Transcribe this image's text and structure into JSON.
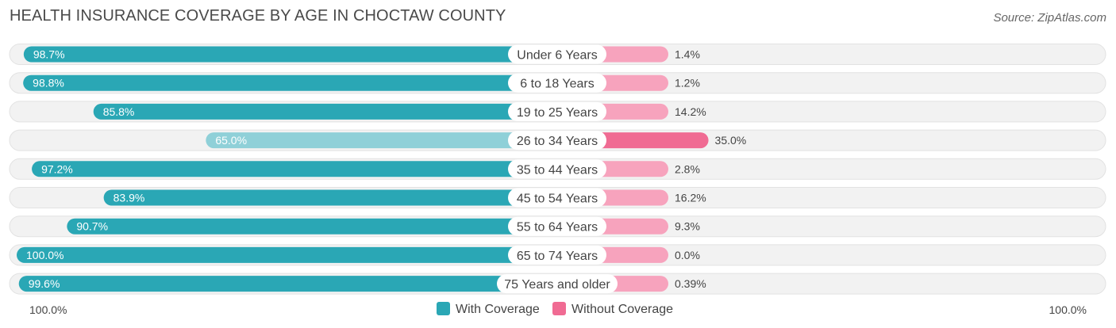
{
  "title": "HEALTH INSURANCE COVERAGE BY AGE IN CHOCTAW COUNTY",
  "source": "Source: ZipAtlas.com",
  "colors": {
    "with_dark": "#2aa7b5",
    "with_light": "#8fd0d8",
    "without_dark": "#f06b93",
    "without_light": "#f7a3bd",
    "track": "#f2f2f2"
  },
  "chart_data": {
    "type": "bar",
    "orientation": "horizontal-diverging",
    "categories": [
      "Under 6 Years",
      "6 to 18 Years",
      "19 to 25 Years",
      "26 to 34 Years",
      "35 to 44 Years",
      "45 to 54 Years",
      "55 to 64 Years",
      "65 to 74 Years",
      "75 Years and older"
    ],
    "series": [
      {
        "name": "With Coverage",
        "values": [
          98.7,
          98.8,
          85.8,
          65.0,
          97.2,
          83.9,
          90.7,
          100.0,
          99.6
        ],
        "labels": [
          "98.7%",
          "98.8%",
          "85.8%",
          "65.0%",
          "97.2%",
          "83.9%",
          "90.7%",
          "100.0%",
          "99.6%"
        ]
      },
      {
        "name": "Without Coverage",
        "values": [
          1.4,
          1.2,
          14.2,
          35.0,
          2.8,
          16.2,
          9.3,
          0.0,
          0.39
        ],
        "labels": [
          "1.4%",
          "1.2%",
          "14.2%",
          "35.0%",
          "2.8%",
          "16.2%",
          "9.3%",
          "0.0%",
          "0.39%"
        ]
      }
    ],
    "axis_labels": {
      "left": "100.0%",
      "right": "100.0%"
    },
    "legend": [
      "With Coverage",
      "Without Coverage"
    ],
    "xlim": [
      0,
      100
    ]
  }
}
